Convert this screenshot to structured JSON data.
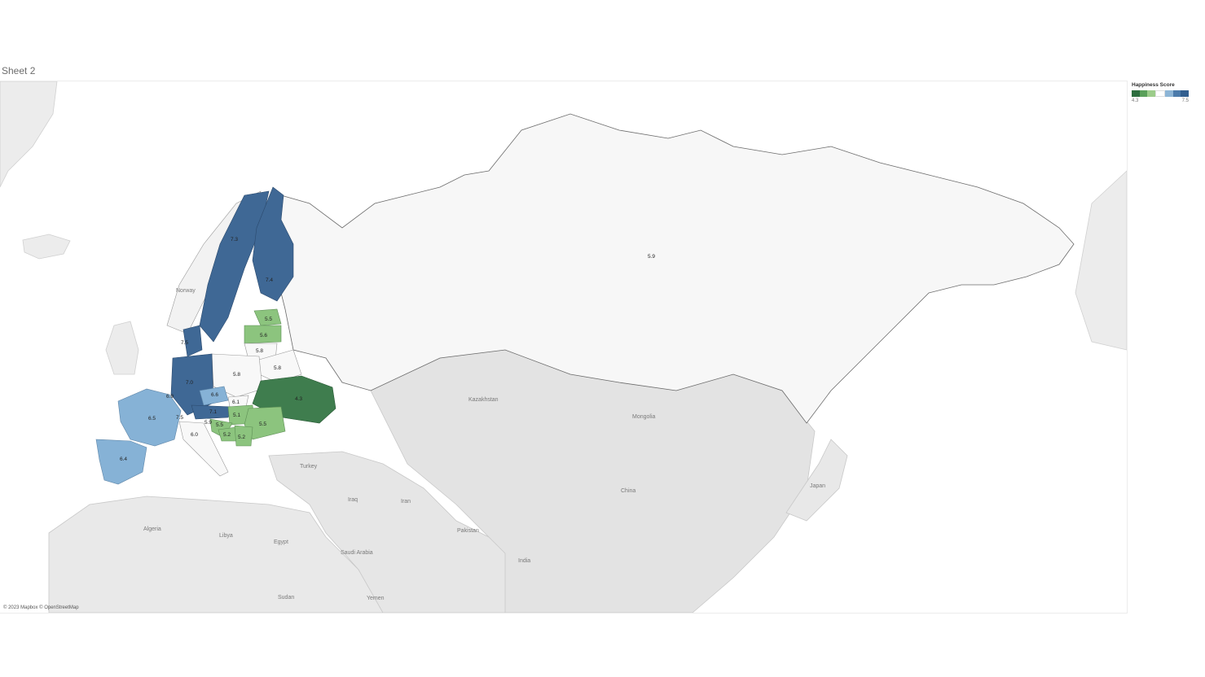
{
  "sheet": {
    "title": "Sheet 2"
  },
  "attribution": "© 2023 Mapbox © OpenStreetMap",
  "legend": {
    "title": "Happiness Score",
    "min": "4.3",
    "max": "7.5",
    "colors": [
      "#2e6e3f",
      "#5aa05a",
      "#9ccc8a",
      "#ffffff",
      "#8db5d6",
      "#4c7bab",
      "#335f8f"
    ]
  },
  "colors": {
    "land": "#e8e8e8",
    "eurasia_north": "#f7f7f7",
    "border": "#b9b9b9",
    "coast": "#6b6b6b",
    "score_4_3": "#3f7d4e",
    "score_5": "#8cc47e",
    "score_white": "#f8f8f8",
    "score_6": "#86b2d6",
    "score_7": "#3f6895"
  },
  "places": {
    "norway": "Norway",
    "kazakhstan": "Kazakhstan",
    "mongolia": "Mongolia",
    "turkey": "Turkey",
    "china": "China",
    "japan": "Japan",
    "iraq": "Iraq",
    "iran": "Iran",
    "pakistan": "Pakistan",
    "algeria": "Algeria",
    "libya": "Libya",
    "egypt": "Egypt",
    "saudi_arabia": "Saudi Arabia",
    "india": "India",
    "sudan": "Sudan",
    "yemen": "Yemen"
  },
  "scores": {
    "russia": "5.9",
    "sweden": "7.3",
    "finland": "7.4",
    "estonia": "5.5",
    "latvia": "5.6",
    "lithuania": "5.8",
    "belarus": "5.8",
    "poland": "5.8",
    "ukraine": "4.3",
    "germany": "7.0",
    "denmark": "7.5",
    "czechia": "6.6",
    "slovakia": "6.1",
    "hungary": "5.1",
    "romania": "5.5",
    "austria": "7.1",
    "switzerland": "7.5",
    "france": "6.5",
    "spain": "6.4",
    "italy": "6.0",
    "croatia": "5.5",
    "bosnia": "5.2",
    "serbia": "5.2",
    "slovenia": "5.9",
    "belgium": "6.9"
  }
}
